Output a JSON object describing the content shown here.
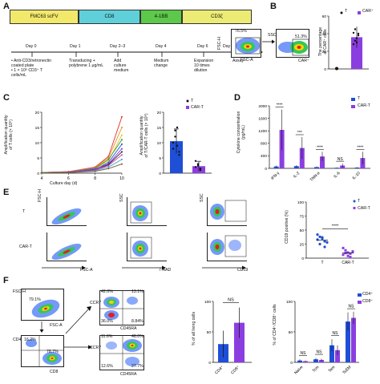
{
  "colors": {
    "T": "#1f4fd6",
    "CART": "#8b3ee0",
    "construct_yellow": "#f2e86a",
    "construct_cyan": "#5fd0da",
    "construct_green": "#5cc94a",
    "construct_yellow2": "#ecec74"
  },
  "panelA": {
    "label": "A",
    "construct": [
      "FMC63 scFV",
      "CD8",
      "4-1BB",
      "CD3ζ"
    ],
    "days": [
      "Day 0",
      "Day 1",
      "Day 2–3",
      "Day 4",
      "Day 6",
      "Day 8 or Day 10"
    ],
    "steps": [
      "• Anti-CD3/retronectin\ncoated plate\n• 1 × 10⁶ CD3⁺ T\ncells/mL",
      "Transducing +\npolybrene 1 μg/mL",
      "Add\nculture\nmedium",
      "Medium\nchange",
      "Expansion\n10 times\ndilution",
      "Assay"
    ]
  },
  "panelB": {
    "label": "B",
    "fsc_h": "FSC-H",
    "fsc_a": "FSC-A",
    "ssc": "SSC",
    "car": "CAR⁺",
    "gate1_pct": "76.5%",
    "gate2_pct": "51.3%",
    "ylabel": "The percentage\nof CAR⁺ cells",
    "legend": [
      "T",
      "CAR⁺"
    ]
  },
  "panelC": {
    "label": "C",
    "ylabel": "Amplification quantity\nof T cells (× 10⁶)",
    "xlabel": "Culture day (d)",
    "ylabel2": "Amplification quantity\nof T/CAR-T cells (× 10⁶)",
    "legend": [
      "T",
      "CAR-T"
    ]
  },
  "panelD": {
    "label": "D",
    "ylabel": "Cytokine concentration\n(pg/mL)",
    "categories": [
      "IFN-γ",
      "IL-2",
      "TNN-α",
      "IL-6",
      "IL-10"
    ],
    "sig": [
      "****",
      "***",
      "****",
      "NS",
      "****"
    ],
    "legend": [
      "T",
      "CAR-T"
    ]
  },
  "panelE": {
    "label": "E",
    "rows": [
      "T",
      "CAR-T"
    ],
    "fsc_h": "FSC-H",
    "fsc_a": "FSC-A",
    "ssc": "SSC",
    "aad": "7-AAD",
    "cd19": "CD19",
    "ylabel": "CD19 positive (%)",
    "sig": "****",
    "legend": [
      "T",
      "CAR-T"
    ]
  },
  "panelF": {
    "label": "F",
    "fsc_h": "FSC-H",
    "fsc_a": "FSC-A",
    "cd4": "CD4",
    "cd8": "CD8",
    "ccr7": "CCR7",
    "cd45ra": "CD45RA",
    "gate_pct": "79.1%",
    "cd4_pct": "16.2%",
    "cd8_pct": "78.7%",
    "quad1": [
      "42.0%",
      "13.1%",
      "36.0%",
      "8.84%"
    ],
    "quad2": [
      "11.6%",
      "48.0%",
      "12.6%",
      "27.7%"
    ],
    "ylabel1": "% of all living cells",
    "ylabel2": "% of CD4⁺/CD8⁺ cells",
    "cats1": [
      "CD4⁺",
      "CD8⁺"
    ],
    "cats2": [
      "Naive",
      "Tcm",
      "Tem",
      "TsEM"
    ],
    "sig1": "NS",
    "sig2": [
      "NS",
      "NS",
      "NS",
      "NS"
    ],
    "legend": [
      "CD4⁺",
      "CD8⁺"
    ]
  },
  "chart_data": [
    {
      "type": "line",
      "id": "C-left",
      "xlim": [
        4,
        10
      ],
      "xticks": [
        4,
        6,
        8,
        10
      ],
      "ylim": [
        0,
        20
      ],
      "yticks": [
        0,
        5,
        10,
        15,
        20
      ],
      "x": [
        4,
        6,
        8,
        9,
        10
      ],
      "series": [
        {
          "values": [
            0.2,
            0.5,
            2.0,
            5.5,
            18.5
          ]
        },
        {
          "values": [
            0.2,
            0.5,
            1.8,
            5.0,
            15.0
          ]
        },
        {
          "values": [
            0.2,
            0.4,
            1.5,
            4.0,
            12.5
          ]
        },
        {
          "values": [
            0.2,
            0.4,
            1.6,
            4.5,
            11.0
          ]
        },
        {
          "values": [
            0.1,
            0.3,
            1.2,
            3.5,
            9.5
          ]
        },
        {
          "values": [
            0.1,
            0.4,
            1.4,
            3.0,
            8.0
          ]
        },
        {
          "values": [
            0.1,
            0.3,
            1.0,
            2.8,
            7.0
          ]
        },
        {
          "values": [
            0.1,
            0.3,
            1.0,
            2.5,
            6.0
          ]
        },
        {
          "values": [
            0.1,
            0.2,
            0.8,
            2.0,
            4.5
          ]
        },
        {
          "values": [
            0.1,
            0.2,
            0.6,
            1.5,
            3.0
          ]
        }
      ]
    },
    {
      "type": "bar",
      "id": "C-right",
      "categories": [
        "T",
        "CAR-T"
      ],
      "values": [
        10.5,
        2.3
      ],
      "errors": [
        4.0,
        1.6
      ],
      "ylim": [
        0,
        20
      ],
      "yticks": [
        0,
        5,
        10,
        15,
        20
      ]
    },
    {
      "type": "bar",
      "id": "D",
      "categories": [
        "IFN-γ",
        "IL-2",
        "TNN-α",
        "IL-6",
        "IL-10"
      ],
      "series": [
        {
          "name": "T",
          "values": [
            60,
            70,
            40,
            20,
            25
          ],
          "errors": [
            30,
            30,
            20,
            10,
            15
          ]
        },
        {
          "name": "CAR-T",
          "values": [
            1230,
            650,
            380,
            90,
            330
          ],
          "errors": [
            650,
            350,
            150,
            60,
            200
          ]
        }
      ],
      "ylim": [
        0,
        2000
      ],
      "yticks": [
        0,
        200,
        400,
        600,
        800,
        1000,
        1200,
        1400,
        1600,
        1800,
        2000
      ]
    },
    {
      "type": "scatter",
      "id": "E-right",
      "categories": [
        "T",
        "CAR-T"
      ],
      "ylim": [
        0,
        100
      ],
      "yticks": [
        0,
        25,
        50,
        75,
        100
      ],
      "points": [
        [
          42,
          38,
          35,
          30,
          28,
          33,
          25,
          37,
          20
        ],
        [
          18,
          14,
          10,
          8,
          12,
          6,
          9,
          4,
          2,
          11
        ]
      ]
    },
    {
      "type": "bar",
      "id": "F-middle",
      "categories": [
        "CD4⁺",
        "CD8⁺"
      ],
      "values": [
        30,
        65
      ],
      "errors": [
        22,
        25
      ],
      "ylim": [
        0,
        100
      ],
      "yticks": [
        0,
        50,
        100
      ]
    },
    {
      "type": "bar",
      "id": "F-right",
      "categories": [
        "Naive",
        "Tcm",
        "Tem",
        "TsEM"
      ],
      "series": [
        {
          "name": "CD4⁺",
          "values": [
            3,
            5,
            28,
            67
          ],
          "errors": [
            2,
            2,
            10,
            15
          ]
        },
        {
          "name": "CD8⁺",
          "values": [
            2,
            4,
            20,
            73
          ],
          "errors": [
            1,
            2,
            8,
            10
          ]
        }
      ],
      "ylim": [
        0,
        100
      ],
      "yticks": [
        0,
        50,
        100
      ]
    }
  ]
}
